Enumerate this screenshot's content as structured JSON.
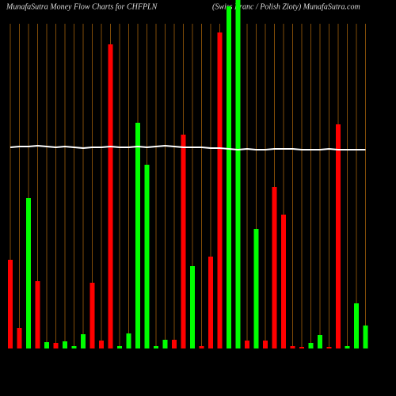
{
  "chart_data": {
    "type": "bar",
    "title": "MunafaSutra  Money Flow  Charts for CHFPLN",
    "subtitle": "(Swiss Franc / Polish Zloty) MunafaSutra.com",
    "categories": [
      null,
      null,
      null,
      null,
      null,
      null,
      null,
      null,
      null,
      null,
      null,
      null,
      null,
      null,
      null,
      null,
      null,
      null,
      null,
      null,
      null,
      null,
      null,
      null,
      null,
      null,
      null,
      null,
      null,
      null,
      null,
      null,
      null,
      null,
      null,
      null,
      null,
      null,
      null,
      null
    ],
    "values": [
      112,
      26,
      190,
      85,
      8,
      7,
      9,
      3,
      18,
      83,
      10,
      384,
      3,
      19,
      285,
      232,
      3,
      11,
      11,
      270,
      104,
      3,
      116,
      399,
      432,
      440,
      10,
      151,
      10,
      204,
      169,
      3,
      2,
      7,
      17,
      2,
      283,
      3,
      57,
      29
    ],
    "colors": [
      "#ff0000",
      "#ff0000",
      "#00ff00",
      "#ff0000",
      "#00ff00",
      "#ff0000",
      "#00ff00",
      "#00ff00",
      "#00ff00",
      "#ff0000",
      "#ff0000",
      "#ff0000",
      "#00ff00",
      "#00ff00",
      "#00ff00",
      "#00ff00",
      "#00ff00",
      "#00ff00",
      "#ff0000",
      "#ff0000",
      "#00ff00",
      "#ff0000",
      "#ff0000",
      "#ff0000",
      "#00ff00",
      "#00ff00",
      "#ff0000",
      "#00ff00",
      "#ff0000",
      "#ff0000",
      "#ff0000",
      "#ff0000",
      "#ff0000",
      "#00ff00",
      "#00ff00",
      "#ff0000",
      "#ff0000",
      "#00ff00",
      "#00ff00",
      "#00ff00"
    ],
    "line": {
      "color": "#ffffff",
      "values": [
        254,
        255,
        255,
        256,
        255,
        254,
        255,
        254,
        253,
        254,
        254,
        255,
        254,
        254,
        255,
        254,
        255,
        256,
        255,
        254,
        254,
        254,
        253,
        253,
        252,
        251,
        252,
        251,
        251,
        252,
        252,
        252,
        251,
        251,
        251,
        252,
        251,
        251,
        251,
        251
      ]
    },
    "ylim": [
      0,
      440
    ],
    "grid": true,
    "grid_color": "#a0600a"
  }
}
